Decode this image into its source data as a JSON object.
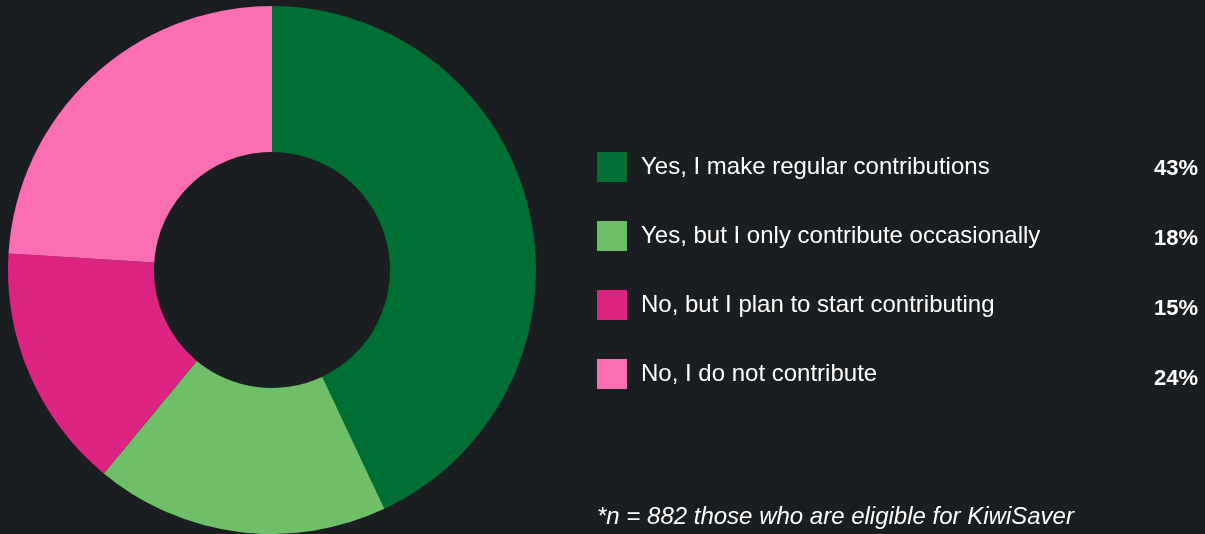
{
  "chart_data": {
    "type": "donut",
    "categories": [
      "Yes, I make regular contributions",
      "Yes, but I only contribute occasionally",
      "No, but I plan to start contributing",
      "No, I do not contribute"
    ],
    "values": [
      43,
      18,
      15,
      24
    ],
    "colors": [
      "#006f33",
      "#6fbe68",
      "#dd2483",
      "#fb6eb3"
    ],
    "value_labels": [
      "43%",
      "18%",
      "15%",
      "24%"
    ],
    "legend": "right",
    "annotations": [
      "*n = 882 those who are eligible for KiwiSaver"
    ]
  }
}
